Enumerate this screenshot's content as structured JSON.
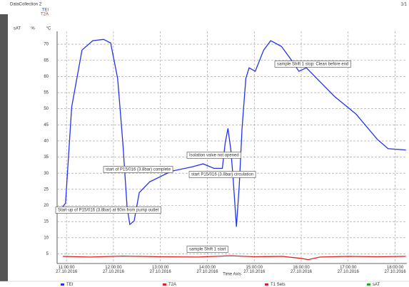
{
  "chart_data": {
    "type": "line",
    "header": "DataCollection 2",
    "page": "1/1",
    "x_label": "Time Axis",
    "unit_labels": [
      "sAT",
      "%",
      "°C"
    ],
    "xlim": [
      10.8,
      18.25
    ],
    "xticks": [
      {
        "value": 11,
        "label": "11:00:00 27.10.2016"
      },
      {
        "value": 12,
        "label": "12:00:00 27.10.2016"
      },
      {
        "value": 13,
        "label": "13:00:00 27.10.2016"
      },
      {
        "value": 14,
        "label": "14:00:00 27.10.2016"
      },
      {
        "value": 15,
        "label": "15:00:00 27.10.2016"
      },
      {
        "value": 16,
        "label": "16:00:00 27.10.2016"
      },
      {
        "value": 17,
        "label": "17:00:00 27.10.2016"
      },
      {
        "value": 18,
        "label": "18:00:00 27.10.2016"
      }
    ],
    "ylim": [
      2,
      74
    ],
    "yticks": [
      5,
      10,
      15,
      20,
      25,
      30,
      35,
      40,
      45,
      50,
      55,
      60,
      65,
      70
    ],
    "grid": true,
    "series": [
      {
        "name": "TEI",
        "color": "#2233ee",
        "x": [
          10.92,
          10.98,
          11.11,
          11.33,
          11.56,
          11.79,
          11.94,
          12.09,
          12.2,
          12.29,
          12.35,
          12.44,
          12.55,
          12.77,
          13.23,
          13.68,
          13.91,
          14.14,
          14.32,
          14.38,
          14.44,
          14.5,
          14.55,
          14.62,
          14.68,
          14.74,
          14.82,
          14.89,
          15.02,
          15.2,
          15.35,
          15.58,
          15.8,
          15.95,
          16.11,
          16.33,
          16.71,
          17.17,
          17.62,
          17.85,
          18.23
        ],
        "values": [
          19.6,
          20.7,
          50.5,
          68.2,
          71.1,
          71.5,
          70.4,
          59.4,
          39.4,
          19.6,
          14.1,
          15.2,
          24,
          27.3,
          30.6,
          32,
          32.9,
          31.5,
          31.5,
          39.4,
          43.9,
          37.2,
          28.4,
          13.4,
          26.2,
          43.9,
          59.4,
          62.7,
          61.6,
          68.2,
          71.1,
          69.3,
          64.9,
          61.6,
          62.7,
          59.4,
          53.8,
          48.3,
          40.5,
          37.6,
          37.2
        ]
      },
      {
        "name": "T2A",
        "color": "#e02020",
        "x": [
          10.92,
          11.5,
          12.2,
          13,
          13.8,
          14.5,
          15,
          15.6,
          16,
          16.15,
          16.4,
          17,
          17.6,
          18.23
        ],
        "values": [
          4.2,
          4.0,
          4.3,
          4.1,
          4.0,
          4.4,
          4.1,
          4.2,
          3.6,
          3.2,
          4.0,
          4.2,
          4.1,
          4.2
        ]
      }
    ],
    "legend_entries": [
      {
        "name": "TEI",
        "color": "#2233ee"
      },
      {
        "name": "T2A",
        "color": "#e02020"
      },
      {
        "name": "T1 Sets",
        "color": "#e02020"
      },
      {
        "name": "sAT",
        "color": "#22aa22"
      }
    ],
    "annotations": [
      "sample Shift 1 stop: Clean before end",
      "Isolation valve not opened",
      "start of P15/016 (3.8bar) complete",
      "start P15/016 (3.8bar) circulation",
      "Start-up of P15/016 (3.8bar) at 90m from pump outlet",
      "sample Shift 1 start"
    ]
  }
}
